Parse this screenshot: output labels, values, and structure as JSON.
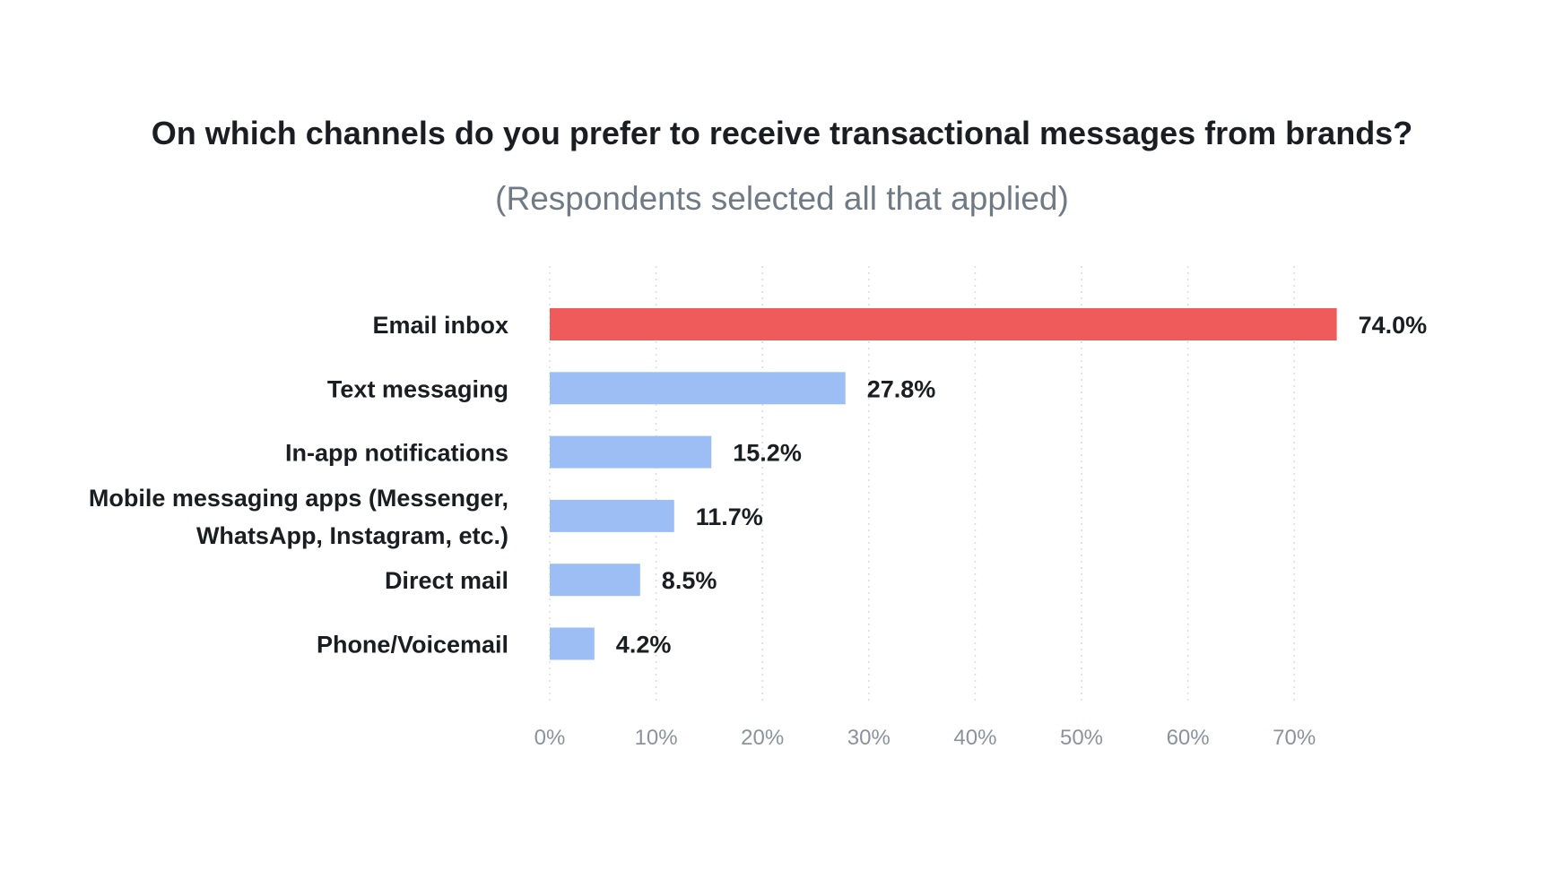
{
  "chart_data": {
    "type": "bar",
    "orientation": "horizontal",
    "title": "On which channels do you prefer to receive transactional messages from brands?",
    "subtitle": "(Respondents selected all that applied)",
    "categories": [
      "Email inbox",
      "Text messaging",
      "In-app notifications",
      "Mobile messaging apps (Messenger, WhatsApp, Instagram, etc.)",
      "Direct mail",
      "Phone/Voicemail"
    ],
    "category_lines": [
      [
        "Email inbox"
      ],
      [
        "Text messaging"
      ],
      [
        "In-app notifications"
      ],
      [
        "Mobile messaging apps (Messenger,",
        "WhatsApp, Instagram, etc.)"
      ],
      [
        "Direct mail"
      ],
      [
        "Phone/Voicemail"
      ]
    ],
    "values": [
      74.0,
      27.8,
      15.2,
      11.7,
      8.5,
      4.2
    ],
    "value_labels": [
      "74.0%",
      "27.8%",
      "15.2%",
      "11.7%",
      "8.5%",
      "4.2%"
    ],
    "xlim": [
      0,
      70
    ],
    "xticks": [
      0,
      10,
      20,
      30,
      40,
      50,
      60,
      70
    ],
    "xtick_labels": [
      "0%",
      "10%",
      "20%",
      "30%",
      "40%",
      "50%",
      "60%",
      "70%"
    ],
    "grid": "vertical dotted",
    "colors": {
      "highlight": "#ef5a5a",
      "bar": "#9dbdf5",
      "grid": "#d9dde2",
      "tick_text": "#8a939c",
      "label_text": "#1a1d22"
    },
    "highlight_index": 0
  }
}
